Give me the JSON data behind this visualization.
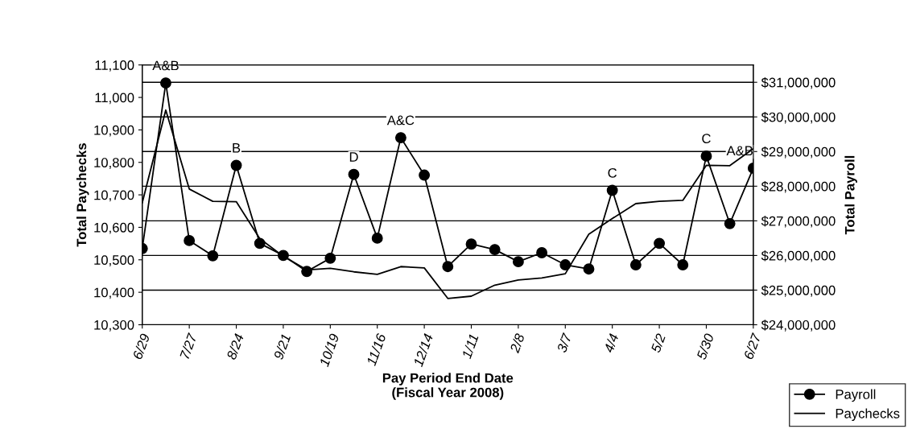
{
  "chart_data": {
    "type": "line",
    "xlabel": "Pay Period End Date\n(Fiscal Year 2008)",
    "ylabel": "Total Paychecks",
    "y2label": "Total Payroll",
    "categories": [
      "6/29",
      null,
      "7/27",
      null,
      "8/24",
      null,
      "9/21",
      null,
      "10/19",
      null,
      "11/16",
      null,
      "12/14",
      null,
      "1/11",
      null,
      "2/8",
      null,
      "3/7",
      null,
      "4/4",
      null,
      "5/2",
      null,
      "5/30",
      null,
      "6/27"
    ],
    "series": [
      {
        "name": "Payroll",
        "color": "#000000",
        "axis": "y2",
        "marker": "circle",
        "values": [
          26200000,
          30980000,
          26430000,
          25990000,
          28600000,
          26350000,
          26000000,
          25540000,
          25920000,
          28340000,
          26500000,
          29400000,
          28320000,
          25680000,
          26330000,
          26170000,
          25820000,
          26080000,
          25730000,
          25610000,
          27880000,
          25730000,
          26350000,
          25730000,
          28870000,
          26920000,
          28520000
        ],
        "value_labels": [
          null,
          "A&B",
          null,
          null,
          "B",
          null,
          null,
          null,
          null,
          "D",
          null,
          "A&C",
          null,
          null,
          null,
          null,
          null,
          null,
          null,
          null,
          "C",
          null,
          null,
          null,
          "C",
          null,
          "A&B"
        ]
      },
      {
        "name": "Paychecks",
        "color": "#000000",
        "marker": "none",
        "values": [
          10676,
          10961,
          10718,
          10680,
          10679,
          10565,
          10511,
          10469,
          10474,
          10463,
          10455,
          10479,
          10475,
          10381,
          10388,
          10422,
          10438,
          10444,
          10457,
          10579,
          10627,
          10673,
          10680,
          10683,
          10791,
          10790,
          10842
        ]
      }
    ],
    "ylim": [
      10300,
      11100
    ],
    "yticks": [
      {
        "value": 10300,
        "label": "10,300"
      },
      {
        "value": 10400,
        "label": "10,400"
      },
      {
        "value": 10500,
        "label": "10,500"
      },
      {
        "value": 10600,
        "label": "10,600"
      },
      {
        "value": 10700,
        "label": "10,700"
      },
      {
        "value": 10800,
        "label": "10,800"
      },
      {
        "value": 10900,
        "label": "10,900"
      },
      {
        "value": 11000,
        "label": "11,000"
      },
      {
        "value": 11100,
        "label": "11,100"
      }
    ],
    "y2lim": [
      24000000,
      31500000
    ],
    "y2ticks": [
      {
        "value": 24000000,
        "label": "$24,000,000"
      },
      {
        "value": 25000000,
        "label": "$25,000,000"
      },
      {
        "value": 26000000,
        "label": "$26,000,000"
      },
      {
        "value": 27000000,
        "label": "$27,000,000"
      },
      {
        "value": 28000000,
        "label": "$28,000,000"
      },
      {
        "value": 29000000,
        "label": "$29,000,000"
      },
      {
        "value": 30000000,
        "label": "$30,000,000"
      },
      {
        "value": 31000000,
        "label": "$31,000,000"
      }
    ],
    "grid": "y2",
    "legend": "bottom right"
  }
}
